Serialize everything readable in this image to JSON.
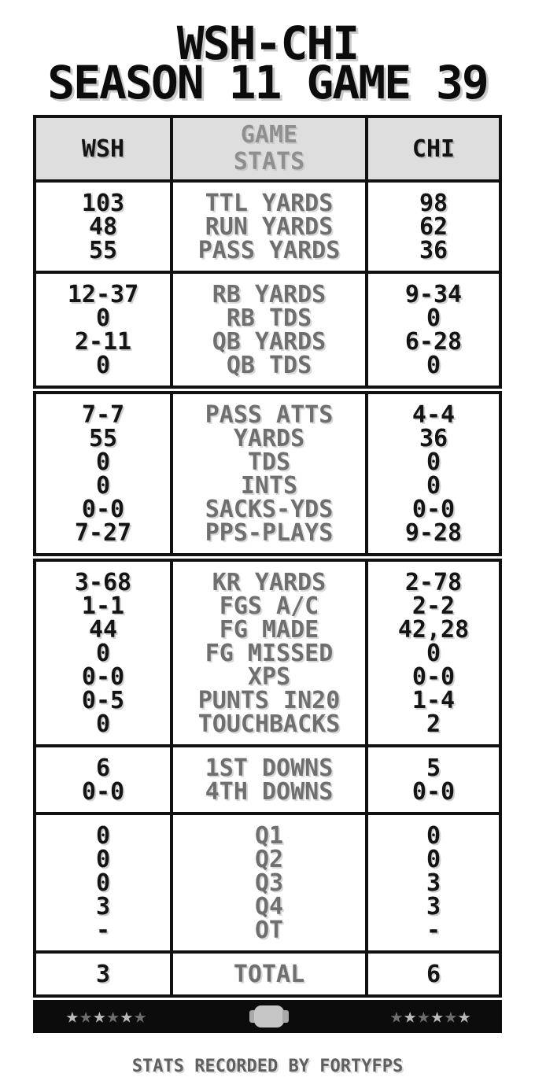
{
  "title": {
    "line1": "WSH-CHI",
    "line2": "SEASON 11 GAME 39"
  },
  "table": {
    "header": {
      "left_team": "WSH",
      "center_line1": "GAME",
      "center_line2": "STATS",
      "right_team": "CHI"
    },
    "sections": [
      {
        "rows": [
          {
            "wsh": "103",
            "label": "TTL YARDS",
            "chi": "98"
          },
          {
            "wsh": "48",
            "label": "RUN YARDS",
            "chi": "62"
          },
          {
            "wsh": "55",
            "label": "PASS YARDS",
            "chi": "36"
          }
        ]
      },
      {
        "rows": [
          {
            "wsh": "12-37",
            "label": "RB YARDS",
            "chi": "9-34"
          },
          {
            "wsh": "0",
            "label": "RB TDS",
            "chi": "0"
          },
          {
            "wsh": "2-11",
            "label": "QB YARDS",
            "chi": "6-28"
          },
          {
            "wsh": "0",
            "label": "QB TDS",
            "chi": "0"
          }
        ]
      },
      {
        "rows": [
          {
            "wsh": "7-7",
            "label": "PASS ATTS",
            "chi": "4-4"
          },
          {
            "wsh": "55",
            "label": "YARDS",
            "chi": "36"
          },
          {
            "wsh": "0",
            "label": "TDS",
            "chi": "0"
          },
          {
            "wsh": "0",
            "label": "INTS",
            "chi": "0"
          },
          {
            "wsh": "0-0",
            "label": "SACKS-YDS",
            "chi": "0-0"
          },
          {
            "wsh": "7-27",
            "label": "PPS-PLAYS",
            "chi": "9-28"
          }
        ]
      },
      {
        "rows": [
          {
            "wsh": "3-68",
            "label": "KR YARDS",
            "chi": "2-78"
          },
          {
            "wsh": "1-1",
            "label": "FGS A/C",
            "chi": "2-2"
          },
          {
            "wsh": "44",
            "label": "FG MADE",
            "chi": "42,28"
          },
          {
            "wsh": "0",
            "label": "FG MISSED",
            "chi": "0"
          },
          {
            "wsh": "0-0",
            "label": "XPS",
            "chi": "0-0"
          },
          {
            "wsh": "0-5",
            "label": "PUNTS IN20",
            "chi": "1-4"
          },
          {
            "wsh": "0",
            "label": "TOUCHBACKS",
            "chi": "2"
          }
        ]
      },
      {
        "rows": [
          {
            "wsh": "6",
            "label": "1ST DOWNS",
            "chi": "5"
          },
          {
            "wsh": "0-0",
            "label": "4TH DOWNS",
            "chi": "0-0"
          }
        ]
      },
      {
        "rows": [
          {
            "wsh": "0",
            "label": "Q1",
            "chi": "0"
          },
          {
            "wsh": "0",
            "label": "Q2",
            "chi": "0"
          },
          {
            "wsh": "0",
            "label": "Q3",
            "chi": "3"
          },
          {
            "wsh": "3",
            "label": "Q4",
            "chi": "3"
          },
          {
            "wsh": "-",
            "label": "OT",
            "chi": "-"
          }
        ]
      }
    ],
    "total": {
      "wsh": "3",
      "label": "TOTAL",
      "chi": "6"
    }
  },
  "footer_bar": {
    "left_star_tones": [
      "light",
      "dark",
      "light",
      "dark",
      "light",
      "dark"
    ],
    "right_star_tones": [
      "dark",
      "light",
      "dark",
      "light",
      "dark",
      "light"
    ]
  },
  "icons": {
    "star": "★"
  },
  "credit": "STATS RECORDED BY FORTYFPS",
  "colors": {
    "border_black": "#111111",
    "header_background": "#dedede",
    "header_title_gray": "#8f8f8f",
    "label_gray": "#6f6f6f",
    "value_black": "#141414",
    "bar_background": "#0c0c0c",
    "star_light": "#bababa",
    "star_dark": "#6e6e6e",
    "football_gray": "#c6c6c6",
    "credit_gray": "#5f5f5f"
  }
}
